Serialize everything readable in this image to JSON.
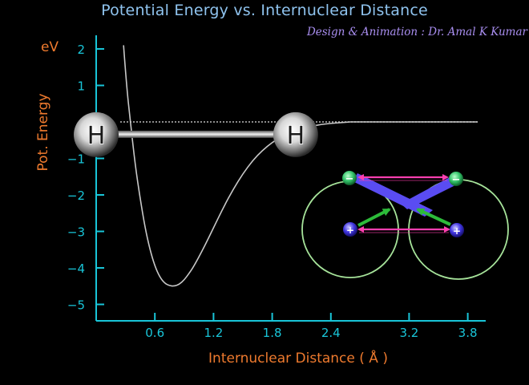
{
  "chart_data": {
    "type": "line",
    "title": "Potential Energy vs. Internuclear Distance",
    "subtitle": "Design & Animation : Dr. Amal K Kumar",
    "xlabel": "Internuclear Distance ( Å )",
    "ylabel": "Pot. Energy",
    "yunit": "eV",
    "xlim": [
      0,
      4.6
    ],
    "ylim": [
      -5.5,
      2.3
    ],
    "xticks": [
      0.6,
      1.2,
      1.8,
      2.4,
      3.2,
      3.8
    ],
    "yticks": [
      2,
      1,
      0,
      -1,
      -2,
      -3,
      -4,
      -5
    ],
    "ytick_labels": [
      "2",
      "1",
      "",
      "−1",
      "−2",
      "−3",
      "−4",
      "−5"
    ],
    "series": [
      {
        "x": [
          0.28,
          0.31,
          0.35,
          0.4,
          0.45,
          0.5,
          0.55,
          0.6,
          0.65,
          0.7,
          0.75,
          0.8,
          0.85,
          0.9,
          0.95,
          1.0,
          1.1,
          1.2,
          1.3,
          1.4,
          1.5,
          1.6,
          1.7,
          1.8,
          1.9,
          2.0,
          2.1,
          2.2,
          2.3,
          2.4,
          2.5,
          2.6
        ],
        "y": [
          2.1,
          1.0,
          0.0,
          -1.2,
          -2.1,
          -2.9,
          -3.5,
          -3.95,
          -4.25,
          -4.42,
          -4.49,
          -4.5,
          -4.45,
          -4.33,
          -4.15,
          -3.95,
          -3.45,
          -2.9,
          -2.35,
          -1.85,
          -1.42,
          -1.06,
          -0.78,
          -0.56,
          -0.4,
          -0.28,
          -0.19,
          -0.12,
          -0.07,
          -0.04,
          -0.02,
          0.0
        ]
      }
    ],
    "baseline": {
      "y": 0,
      "style": "dotted"
    },
    "grid": false
  },
  "atoms": [
    {
      "label": "H",
      "x": 0.0,
      "y": -0.35
    },
    {
      "label": "H",
      "x": 2.04,
      "y": -0.35
    }
  ],
  "overlay": {
    "electron_symbol": "−",
    "proton_symbol": "+"
  },
  "colors": {
    "title": "#8fc3ee",
    "credit": "#a98ef0",
    "axis": "#19c5d8",
    "axis_label": "#ee7a2e",
    "curve": "#c8c8c8",
    "orbit": "#a6e39a",
    "electron": "#33c26a",
    "proton": "#4035e0",
    "repulsion": "#ff3fb0",
    "attraction_blue": "#5a4cf2",
    "attraction_green": "#2dbb3a"
  }
}
